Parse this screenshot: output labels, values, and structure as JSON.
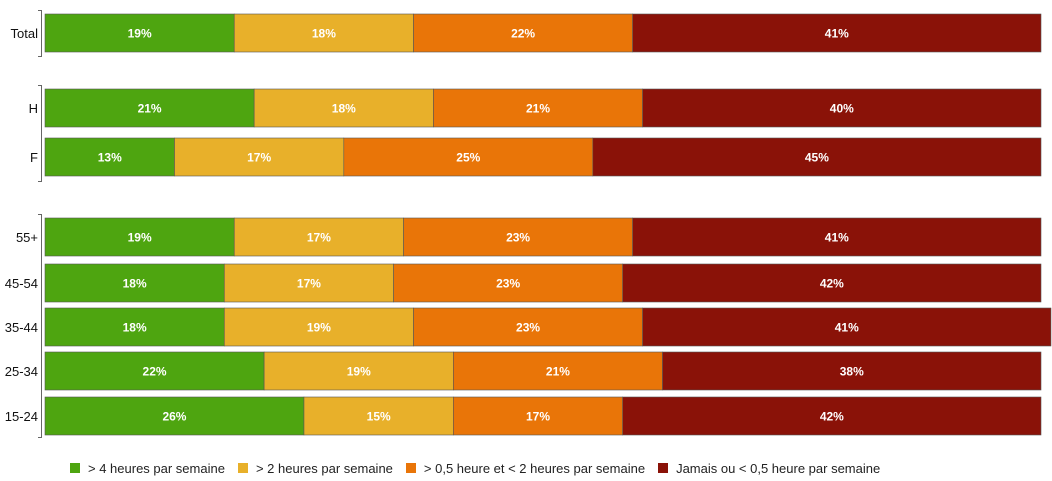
{
  "chart_data": {
    "type": "bar",
    "orientation": "horizontal",
    "stacked": true,
    "xlim": [
      0,
      100
    ],
    "grid": false,
    "legend_position": "bottom",
    "categories": [
      "Total",
      "H",
      "F",
      "55+",
      "45-54",
      "35-44",
      "25-34",
      "15-24"
    ],
    "groups": [
      {
        "categories": [
          "Total"
        ]
      },
      {
        "categories": [
          "H",
          "F"
        ]
      },
      {
        "categories": [
          "55+",
          "45-54",
          "35-44",
          "25-34",
          "15-24"
        ]
      }
    ],
    "series": [
      {
        "name": "> 4 heures par semaine",
        "color": "#4ea510",
        "values": [
          19,
          21,
          13,
          19,
          18,
          18,
          22,
          26
        ]
      },
      {
        "name": "> 2 heures par semaine",
        "color": "#e8b02a",
        "values": [
          18,
          18,
          17,
          17,
          17,
          19,
          19,
          15
        ]
      },
      {
        "name": "> 0,5 heure et < 2 heures par semaine",
        "color": "#e97508",
        "values": [
          22,
          21,
          25,
          23,
          23,
          23,
          21,
          17
        ]
      },
      {
        "name": "Jamais ou < 0,5 heure par semaine",
        "color": "#8a1208",
        "values": [
          41,
          40,
          45,
          41,
          42,
          41,
          38,
          42
        ]
      }
    ],
    "data_labels": [
      [
        "19%",
        "21%",
        "13%",
        "19%",
        "18%",
        "18%",
        "22%",
        "26%"
      ],
      [
        "18%",
        "18%",
        "17%",
        "17%",
        "17%",
        "19%",
        "19%",
        "15%"
      ],
      [
        "22%",
        "21%",
        "25%",
        "23%",
        "23%",
        "23%",
        "21%",
        "17%"
      ],
      [
        "41%",
        "40%",
        "45%",
        "41%",
        "42%",
        "41%",
        "38%",
        "42%"
      ]
    ]
  }
}
